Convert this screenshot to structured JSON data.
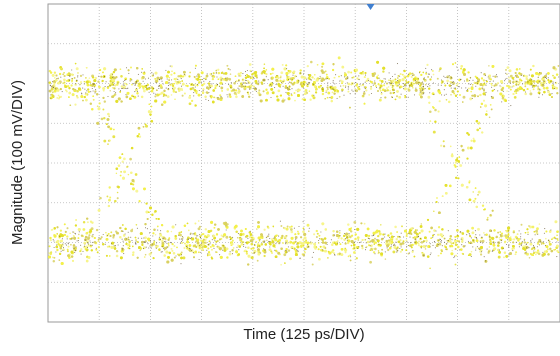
{
  "chart_data": {
    "type": "scatter",
    "subtype": "eye-diagram",
    "title": "",
    "xlabel": "Time (125 ps/DIV)",
    "ylabel": "Magnitude (100 mV/DIV)",
    "x_divisions": 10,
    "y_divisions": 8,
    "xlim": [
      0,
      10
    ],
    "ylim": [
      -4,
      4
    ],
    "grid": true,
    "grid_style": "dotted",
    "logic_levels": [
      2.0,
      -2.0
    ],
    "crossing_points": [
      {
        "x": 1.5,
        "y": 0.0
      },
      {
        "x": 8.0,
        "y": 0.0
      }
    ],
    "level_noise_div": 0.22,
    "trigger_marker_x": 6.3,
    "trace_colors": [
      "#f2f04a",
      "#e3df2c",
      "#d8d060",
      "#f7f58a"
    ],
    "level_dot_color": "#5a4a2a",
    "trigger_marker_color": "#3f7fd0"
  }
}
